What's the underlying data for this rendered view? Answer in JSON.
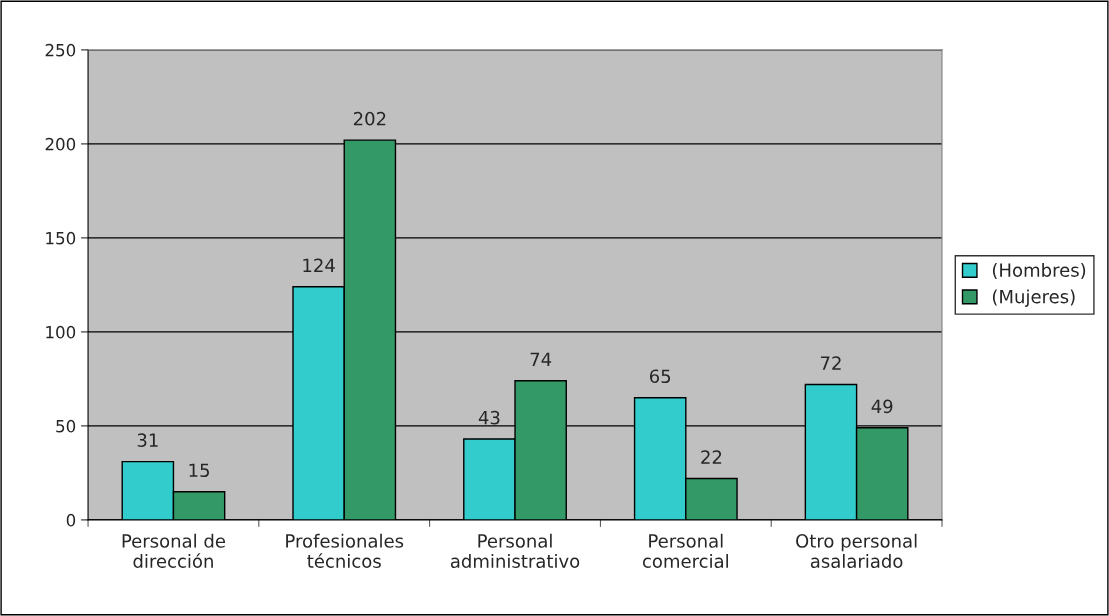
{
  "chart_data": {
    "type": "bar",
    "categories": [
      "Personal de\ndirección",
      "Profesionales\ntécnicos",
      "Personal\nadministrativo",
      "Personal\ncomercial",
      "Otro personal\nasalariado"
    ],
    "series": [
      {
        "name": "(Hombres)",
        "color": "#33cccc",
        "values": [
          31,
          124,
          43,
          65,
          72
        ]
      },
      {
        "name": "(Mujeres)",
        "color": "#339966",
        "values": [
          15,
          202,
          74,
          22,
          49
        ]
      }
    ],
    "ylim": [
      0,
      250
    ],
    "yticks": [
      0,
      50,
      100,
      150,
      200,
      250
    ],
    "grid": "y",
    "legend": "right",
    "data_labels": true
  }
}
